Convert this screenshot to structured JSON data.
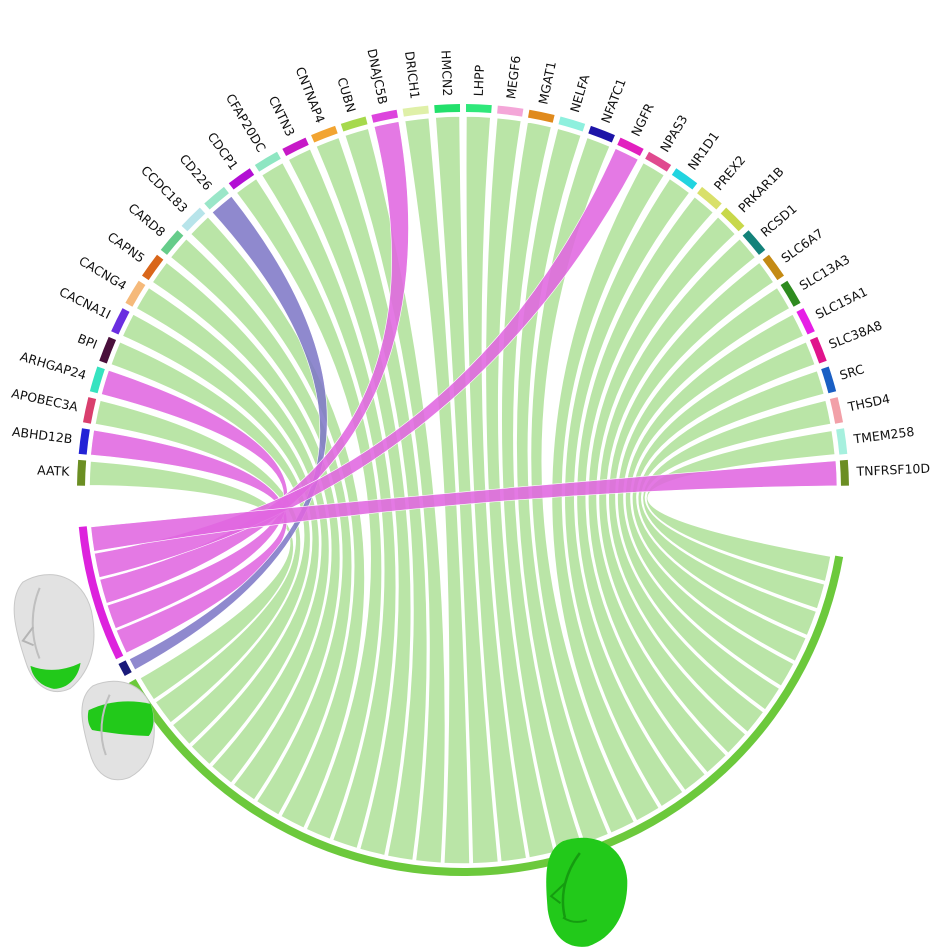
{
  "genes": [
    {
      "name": "AATK",
      "color": "#6b8e23"
    },
    {
      "name": "ABHD12B",
      "color": "#2323d6"
    },
    {
      "name": "APOBEC3A",
      "color": "#d93f6e"
    },
    {
      "name": "ARHGAP24",
      "color": "#36e3c0"
    },
    {
      "name": "BPI",
      "color": "#4a0f3c"
    },
    {
      "name": "CACNA1I",
      "color": "#6a2ee0"
    },
    {
      "name": "CACNG4",
      "color": "#f5b97a"
    },
    {
      "name": "CAPN5",
      "color": "#d9661a"
    },
    {
      "name": "CARD8",
      "color": "#66cc8a"
    },
    {
      "name": "CCDC183",
      "color": "#b7e4ea"
    },
    {
      "name": "CD226",
      "color": "#9ae6c8"
    },
    {
      "name": "CDCP1",
      "color": "#b30fd4"
    },
    {
      "name": "CFAP20DC",
      "color": "#8ee6c2"
    },
    {
      "name": "CNTN3",
      "color": "#c719c7"
    },
    {
      "name": "CNTNAP4",
      "color": "#f2a431"
    },
    {
      "name": "CUBN",
      "color": "#a6d94c"
    },
    {
      "name": "DNAJC5B",
      "color": "#dd44dd"
    },
    {
      "name": "DRICH1",
      "color": "#dff0a8"
    },
    {
      "name": "HMCN2",
      "color": "#22e06b"
    },
    {
      "name": "LHPP",
      "color": "#2fe87a"
    },
    {
      "name": "MEGF6",
      "color": "#f4a6d8"
    },
    {
      "name": "MGAT1",
      "color": "#e08a1c"
    },
    {
      "name": "NELFA",
      "color": "#8ef0de"
    },
    {
      "name": "NFATC1",
      "color": "#1d14a8"
    },
    {
      "name": "NGFR",
      "color": "#e21fbf"
    },
    {
      "name": "NPAS3",
      "color": "#e04a8f"
    },
    {
      "name": "NR1D1",
      "color": "#22d4e0"
    },
    {
      "name": "PREX2",
      "color": "#d9e06a"
    },
    {
      "name": "PRKAR1B",
      "color": "#c8d84a"
    },
    {
      "name": "RCSD1",
      "color": "#13827a"
    },
    {
      "name": "SLC6A7",
      "color": "#c48a14"
    },
    {
      "name": "SLC13A3",
      "color": "#2e8b1f"
    },
    {
      "name": "SLC15A1",
      "color": "#e61fe6"
    },
    {
      "name": "SLC38A8",
      "color": "#e0148c"
    },
    {
      "name": "SRC",
      "color": "#1a5fc4"
    },
    {
      "name": "THSD4",
      "color": "#f2a0a8"
    },
    {
      "name": "TMEM258",
      "color": "#a6f0de"
    },
    {
      "name": "TNFRSF10D",
      "color": "#6b8e23"
    }
  ],
  "groups": [
    {
      "face_region": "chin",
      "arc_color": "#dd22dd",
      "ribbon_color": "#e067e0"
    },
    {
      "face_region": "eyes",
      "arc_color": "#1a1a7a",
      "ribbon_color": "#7f79c7"
    },
    {
      "face_region": "whole-face",
      "arc_color": "#6cc93c",
      "ribbon_color": "#b4e3a0"
    }
  ],
  "colors": {
    "face_base": "#e2e2e2",
    "face_region": "#22c91a"
  }
}
